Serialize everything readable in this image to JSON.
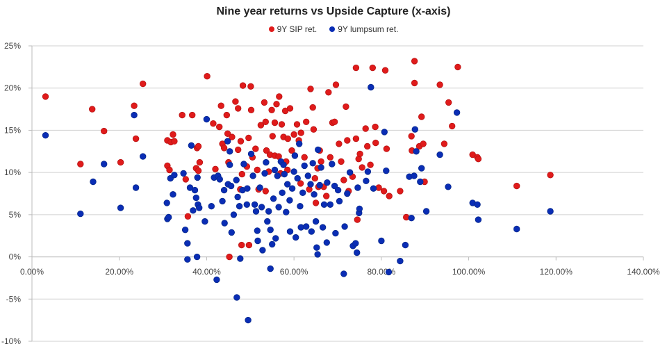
{
  "chart_data": {
    "type": "scatter",
    "title": "Nine year returns vs Upside Capture (x-axis)",
    "xlabel": "",
    "ylabel": "",
    "xlim": [
      0,
      140
    ],
    "ylim": [
      -10,
      25
    ],
    "x_ticks": [
      "0.00%",
      "20.00%",
      "40.00%",
      "60.00%",
      "80.00%",
      "100.00%",
      "120.00%",
      "140.00%"
    ],
    "y_ticks": [
      "25%",
      "20%",
      "15%",
      "10%",
      "5%",
      "0%",
      "-5%",
      "-10%"
    ],
    "grid": "horizontal",
    "legend_position": "top",
    "series": [
      {
        "name": "9Y SIP ret.",
        "color": "#e01b1b",
        "points": [
          [
            3.1,
            19.0
          ],
          [
            11.1,
            11.0
          ],
          [
            13.8,
            17.5
          ],
          [
            16.5,
            14.9
          ],
          [
            20.3,
            11.2
          ],
          [
            23.4,
            17.9
          ],
          [
            23.8,
            14.0
          ],
          [
            25.4,
            20.5
          ],
          [
            31.0,
            10.8
          ],
          [
            31.0,
            13.8
          ],
          [
            31.5,
            10.3
          ],
          [
            31.8,
            13.6
          ],
          [
            32.3,
            14.5
          ],
          [
            32.6,
            13.7
          ],
          [
            34.4,
            16.8
          ],
          [
            35.2,
            9.2
          ],
          [
            35.7,
            4.8
          ],
          [
            36.7,
            16.8
          ],
          [
            37.6,
            10.5
          ],
          [
            37.8,
            12.9
          ],
          [
            38.1,
            10.2
          ],
          [
            38.4,
            11.2
          ],
          [
            38.1,
            13.1
          ],
          [
            40.1,
            21.4
          ],
          [
            41.5,
            15.8
          ],
          [
            42.0,
            10.4
          ],
          [
            42.9,
            15.4
          ],
          [
            43.3,
            17.9
          ],
          [
            43.6,
            13.4
          ],
          [
            44.0,
            12.9
          ],
          [
            44.6,
            16.8
          ],
          [
            44.8,
            14.6
          ],
          [
            45.0,
            11.2
          ],
          [
            45.2,
            0.0
          ],
          [
            45.8,
            14.2
          ],
          [
            46.6,
            18.4
          ],
          [
            47.2,
            17.6
          ],
          [
            47.2,
            12.7
          ],
          [
            47.8,
            13.7
          ],
          [
            48.3,
            20.3
          ],
          [
            47.7,
            8.0
          ],
          [
            48.1,
            9.8
          ],
          [
            48.0,
            1.4
          ],
          [
            49.2,
            10.7
          ],
          [
            49.6,
            14.1
          ],
          [
            49.7,
            1.4
          ],
          [
            50.2,
            17.4
          ],
          [
            50.1,
            20.2
          ],
          [
            50.5,
            11.8
          ],
          [
            51.2,
            12.8
          ],
          [
            51.6,
            10.3
          ],
          [
            51.9,
            8.0
          ],
          [
            52.4,
            15.6
          ],
          [
            53.2,
            18.3
          ],
          [
            53.5,
            16.0
          ],
          [
            53.7,
            12.6
          ],
          [
            53.5,
            7.8
          ],
          [
            54.2,
            10.1
          ],
          [
            54.5,
            12.1
          ],
          [
            54.9,
            17.4
          ],
          [
            55.1,
            14.3
          ],
          [
            55.6,
            15.9
          ],
          [
            55.6,
            12.0
          ],
          [
            56.0,
            18.1
          ],
          [
            56.5,
            11.9
          ],
          [
            56.6,
            19.0
          ],
          [
            56.9,
            9.9
          ],
          [
            57.2,
            15.7
          ],
          [
            57.6,
            14.2
          ],
          [
            58.0,
            17.3
          ],
          [
            58.2,
            11.3
          ],
          [
            58.5,
            10.3
          ],
          [
            58.6,
            14.0
          ],
          [
            59.1,
            17.6
          ],
          [
            59.5,
            12.6
          ],
          [
            60.0,
            14.5
          ],
          [
            60.2,
            12.0
          ],
          [
            60.7,
            15.7
          ],
          [
            61.1,
            13.8
          ],
          [
            61.6,
            14.7
          ],
          [
            61.5,
            8.7
          ],
          [
            62.4,
            11.8
          ],
          [
            62.8,
            16.0
          ],
          [
            63.5,
            8.0
          ],
          [
            63.8,
            19.9
          ],
          [
            64.3,
            17.7
          ],
          [
            64.5,
            15.1
          ],
          [
            64.8,
            9.3
          ],
          [
            65.0,
            6.4
          ],
          [
            65.4,
            10.5
          ],
          [
            65.6,
            8.3
          ],
          [
            65.9,
            12.6
          ],
          [
            66.2,
            11.3
          ],
          [
            66.8,
            8.3
          ],
          [
            67.4,
            7.2
          ],
          [
            67.9,
            19.5
          ],
          [
            68.3,
            11.8
          ],
          [
            68.8,
            15.9
          ],
          [
            69.3,
            16.0
          ],
          [
            69.6,
            20.4
          ],
          [
            70.3,
            13.4
          ],
          [
            70.8,
            11.3
          ],
          [
            71.4,
            9.1
          ],
          [
            71.9,
            17.8
          ],
          [
            72.2,
            13.8
          ],
          [
            72.5,
            7.8
          ],
          [
            73.4,
            9.5
          ],
          [
            74.2,
            22.4
          ],
          [
            74.2,
            14.0
          ],
          [
            74.5,
            4.4
          ],
          [
            74.8,
            11.6
          ],
          [
            75.1,
            12.2
          ],
          [
            75.6,
            10.6
          ],
          [
            76.4,
            15.2
          ],
          [
            76.8,
            13.1
          ],
          [
            77.5,
            10.9
          ],
          [
            78.0,
            22.4
          ],
          [
            78.6,
            15.4
          ],
          [
            78.7,
            13.5
          ],
          [
            79.4,
            8.2
          ],
          [
            80.6,
            7.8
          ],
          [
            80.9,
            22.1
          ],
          [
            81.2,
            12.8
          ],
          [
            81.8,
            7.2
          ],
          [
            84.3,
            7.8
          ],
          [
            85.7,
            4.7
          ],
          [
            86.9,
            14.3
          ],
          [
            87.0,
            12.6
          ],
          [
            87.6,
            23.2
          ],
          [
            87.6,
            20.6
          ],
          [
            88.7,
            13.1
          ],
          [
            89.2,
            16.6
          ],
          [
            89.6,
            13.4
          ],
          [
            89.9,
            8.9
          ],
          [
            93.4,
            20.4
          ],
          [
            94.4,
            13.4
          ],
          [
            95.4,
            18.3
          ],
          [
            96.2,
            15.5
          ],
          [
            97.5,
            22.5
          ],
          [
            100.9,
            12.1
          ],
          [
            102.0,
            11.8
          ],
          [
            102.2,
            11.6
          ],
          [
            111.0,
            8.4
          ],
          [
            118.7,
            9.7
          ]
        ]
      },
      {
        "name": "9Y lumpsum ret.",
        "color": "#0a2db5",
        "points": [
          [
            3.1,
            14.4
          ],
          [
            11.1,
            5.1
          ],
          [
            14.0,
            8.9
          ],
          [
            16.5,
            11.0
          ],
          [
            20.3,
            5.8
          ],
          [
            23.4,
            16.8
          ],
          [
            23.8,
            8.2
          ],
          [
            25.4,
            11.9
          ],
          [
            30.9,
            6.4
          ],
          [
            31.0,
            4.5
          ],
          [
            31.3,
            4.7
          ],
          [
            31.7,
            9.3
          ],
          [
            32.3,
            7.4
          ],
          [
            32.6,
            9.7
          ],
          [
            34.7,
            9.9
          ],
          [
            35.1,
            3.2
          ],
          [
            35.6,
            -0.3
          ],
          [
            35.6,
            1.6
          ],
          [
            36.2,
            8.2
          ],
          [
            36.5,
            13.2
          ],
          [
            36.9,
            5.5
          ],
          [
            37.3,
            7.9
          ],
          [
            37.6,
            7.0
          ],
          [
            37.8,
            0.0
          ],
          [
            37.9,
            9.4
          ],
          [
            38.0,
            6.2
          ],
          [
            38.3,
            5.8
          ],
          [
            39.6,
            4.2
          ],
          [
            40.0,
            16.3
          ],
          [
            41.1,
            6.0
          ],
          [
            41.7,
            9.4
          ],
          [
            42.3,
            -2.7
          ],
          [
            42.6,
            9.6
          ],
          [
            43.0,
            9.2
          ],
          [
            43.6,
            6.6
          ],
          [
            44.0,
            7.9
          ],
          [
            44.1,
            4.0
          ],
          [
            44.8,
            13.7
          ],
          [
            44.9,
            8.6
          ],
          [
            45.3,
            12.5
          ],
          [
            45.3,
            10.9
          ],
          [
            45.6,
            8.4
          ],
          [
            45.7,
            2.9
          ],
          [
            46.2,
            5.0
          ],
          [
            46.8,
            9.1
          ],
          [
            46.9,
            -4.8
          ],
          [
            47.1,
            7.1
          ],
          [
            47.5,
            6.0
          ],
          [
            47.7,
            -0.2
          ],
          [
            48.2,
            7.9
          ],
          [
            48.5,
            11.0
          ],
          [
            49.2,
            6.2
          ],
          [
            49.3,
            8.1
          ],
          [
            49.5,
            -7.5
          ],
          [
            50.2,
            12.2
          ],
          [
            50.6,
            9.6
          ],
          [
            51.0,
            6.2
          ],
          [
            51.3,
            5.4
          ],
          [
            51.6,
            3.1
          ],
          [
            51.7,
            1.9
          ],
          [
            52.2,
            8.2
          ],
          [
            52.6,
            5.9
          ],
          [
            52.8,
            0.8
          ],
          [
            53.3,
            9.9
          ],
          [
            53.6,
            11.2
          ],
          [
            53.9,
            4.2
          ],
          [
            54.2,
            5.4
          ],
          [
            54.6,
            3.2
          ],
          [
            54.6,
            -1.4
          ],
          [
            55.0,
            1.5
          ],
          [
            55.3,
            6.9
          ],
          [
            55.6,
            10.3
          ],
          [
            55.8,
            2.2
          ],
          [
            56.2,
            9.6
          ],
          [
            56.5,
            5.9
          ],
          [
            57.0,
            11.3
          ],
          [
            57.3,
            7.6
          ],
          [
            57.6,
            10.9
          ],
          [
            57.8,
            9.8
          ],
          [
            58.2,
            5.3
          ],
          [
            58.5,
            8.6
          ],
          [
            59.0,
            6.7
          ],
          [
            59.1,
            3.0
          ],
          [
            59.6,
            8.1
          ],
          [
            60.2,
            12.0
          ],
          [
            60.0,
            10.1
          ],
          [
            60.4,
            2.3
          ],
          [
            60.8,
            9.3
          ],
          [
            61.2,
            13.4
          ],
          [
            61.4,
            6.0
          ],
          [
            61.6,
            3.5
          ],
          [
            62.0,
            7.6
          ],
          [
            62.4,
            10.8
          ],
          [
            62.8,
            3.6
          ],
          [
            63.2,
            9.6
          ],
          [
            63.8,
            8.6
          ],
          [
            64.0,
            3.0
          ],
          [
            64.3,
            11.1
          ],
          [
            64.6,
            7.4
          ],
          [
            65.0,
            4.2
          ],
          [
            65.2,
            1.1
          ],
          [
            65.4,
            0.3
          ],
          [
            65.5,
            12.7
          ],
          [
            65.9,
            8.5
          ],
          [
            66.2,
            10.6
          ],
          [
            66.6,
            3.5
          ],
          [
            66.9,
            6.2
          ],
          [
            67.5,
            1.7
          ],
          [
            67.6,
            8.8
          ],
          [
            68.3,
            6.2
          ],
          [
            68.7,
            11.0
          ],
          [
            69.3,
            8.4
          ],
          [
            69.5,
            2.8
          ],
          [
            70.1,
            7.9
          ],
          [
            70.4,
            6.6
          ],
          [
            71.4,
            -2.0
          ],
          [
            71.6,
            3.6
          ],
          [
            72.2,
            7.5
          ],
          [
            72.8,
            10.0
          ],
          [
            73.5,
            1.3
          ],
          [
            74.1,
            1.6
          ],
          [
            74.4,
            0.5
          ],
          [
            74.6,
            8.2
          ],
          [
            74.9,
            5.2
          ],
          [
            75.0,
            5.7
          ],
          [
            76.5,
            9.0
          ],
          [
            76.9,
            10.1
          ],
          [
            77.6,
            20.1
          ],
          [
            78.2,
            8.1
          ],
          [
            80.0,
            1.9
          ],
          [
            80.7,
            14.8
          ],
          [
            81.1,
            10.2
          ],
          [
            81.7,
            -1.8
          ],
          [
            84.3,
            -0.5
          ],
          [
            85.5,
            1.4
          ],
          [
            86.4,
            9.5
          ],
          [
            86.9,
            4.6
          ],
          [
            87.5,
            9.6
          ],
          [
            87.7,
            15.1
          ],
          [
            88.0,
            12.5
          ],
          [
            88.9,
            8.9
          ],
          [
            89.2,
            10.5
          ],
          [
            90.3,
            5.4
          ],
          [
            93.4,
            12.1
          ],
          [
            95.3,
            8.3
          ],
          [
            97.3,
            17.1
          ],
          [
            100.9,
            6.4
          ],
          [
            102.0,
            6.2
          ],
          [
            102.2,
            4.4
          ],
          [
            111.0,
            3.3
          ],
          [
            118.7,
            5.4
          ]
        ]
      }
    ]
  }
}
